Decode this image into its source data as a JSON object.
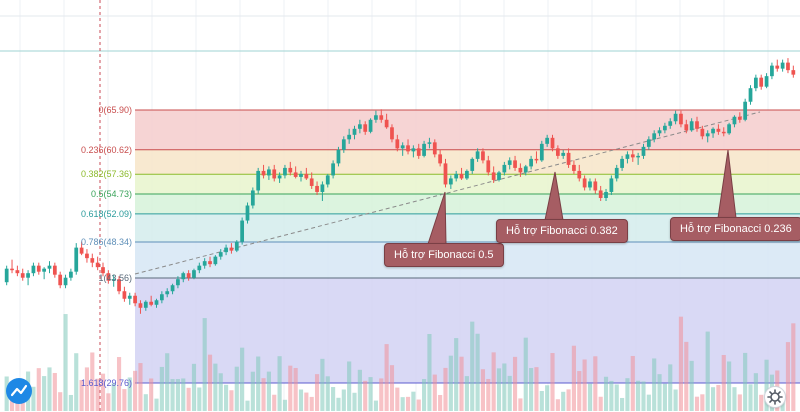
{
  "chart_data": {
    "type": "candlestick",
    "y_unit": "price",
    "fibonacci_levels": [
      {
        "ratio": "0",
        "price": 65.9,
        "label": "0(65.90)",
        "color": "#c84d4d",
        "fill": "#f4cccc"
      },
      {
        "ratio": "0.236",
        "price": 60.62,
        "label": "0.236(60.62)",
        "color": "#c84d4d",
        "fill": "#f7e5c8"
      },
      {
        "ratio": "0.382",
        "price": 57.36,
        "label": "0.382(57.36)",
        "color": "#8cbb2c",
        "fill": "#e7f5cc"
      },
      {
        "ratio": "0.5",
        "price": 54.73,
        "label": "0.5(54.73)",
        "color": "#3aa35a",
        "fill": "#d6f2d9"
      },
      {
        "ratio": "0.618",
        "price": 52.09,
        "label": "0.618(52.09)",
        "color": "#2c9c9c",
        "fill": "#d3ecec"
      },
      {
        "ratio": "0.786",
        "price": 48.34,
        "label": "0.786(48.34)",
        "color": "#5e8fb8",
        "fill": "#d6e6f5"
      },
      {
        "ratio": "1",
        "price": 43.56,
        "label": "1(43.56)",
        "color": "#5a6a7a",
        "fill": "#e7e7e7"
      },
      {
        "ratio": "1.618",
        "price": 29.76,
        "label": "1.618(29.76)",
        "color": "#5c5ccf",
        "fill": "#d5d5f4"
      }
    ],
    "annotations": [
      {
        "text": "Hỗ trợ Fibonacci 0.5"
      },
      {
        "text": "Hỗ trợ Fibonacci 0.382"
      },
      {
        "text": "Hỗ trợ Fibonacci 0.236"
      }
    ],
    "candles": [
      [
        43.0,
        45.2,
        42.6,
        44.8
      ],
      [
        44.8,
        46.0,
        44.2,
        44.6
      ],
      [
        44.6,
        45.2,
        43.8,
        44.2
      ],
      [
        44.2,
        44.8,
        43.2,
        43.6
      ],
      [
        43.6,
        44.6,
        42.6,
        44.2
      ],
      [
        44.2,
        45.6,
        43.8,
        45.2
      ],
      [
        45.2,
        45.6,
        44.0,
        44.4
      ],
      [
        44.4,
        45.0,
        43.4,
        44.8
      ],
      [
        44.8,
        45.8,
        44.2,
        45.2
      ],
      [
        45.2,
        45.6,
        43.6,
        44.0
      ],
      [
        44.0,
        44.4,
        42.2,
        42.6
      ],
      [
        42.6,
        44.0,
        42.2,
        43.6
      ],
      [
        43.6,
        44.8,
        43.2,
        44.4
      ],
      [
        44.4,
        48.2,
        44.0,
        47.6
      ],
      [
        47.6,
        48.4,
        46.6,
        46.8
      ],
      [
        46.8,
        47.4,
        45.6,
        46.2
      ],
      [
        46.2,
        46.8,
        45.0,
        45.6
      ],
      [
        45.6,
        46.4,
        44.6,
        45.0
      ],
      [
        45.0,
        45.6,
        43.8,
        44.2
      ],
      [
        44.2,
        44.6,
        42.8,
        43.2
      ],
      [
        43.2,
        44.0,
        42.4,
        43.4
      ],
      [
        43.4,
        43.8,
        41.4,
        41.8
      ],
      [
        41.8,
        42.4,
        40.4,
        40.8
      ],
      [
        40.8,
        41.6,
        40.0,
        41.2
      ],
      [
        41.2,
        41.6,
        39.8,
        40.2
      ],
      [
        40.2,
        40.6,
        38.8,
        39.6
      ],
      [
        39.6,
        40.6,
        39.2,
        40.4
      ],
      [
        40.4,
        41.2,
        39.8,
        40.0
      ],
      [
        40.0,
        40.8,
        39.6,
        40.6
      ],
      [
        40.6,
        41.8,
        40.2,
        41.4
      ],
      [
        41.4,
        42.2,
        41.0,
        41.8
      ],
      [
        41.8,
        42.8,
        41.4,
        42.6
      ],
      [
        42.6,
        43.8,
        42.2,
        43.4
      ],
      [
        43.4,
        44.4,
        43.0,
        44.2
      ],
      [
        44.2,
        44.6,
        43.2,
        43.6
      ],
      [
        43.6,
        44.8,
        43.4,
        44.6
      ],
      [
        44.6,
        45.6,
        44.2,
        45.2
      ],
      [
        45.2,
        46.2,
        44.8,
        45.8
      ],
      [
        45.8,
        46.4,
        45.0,
        45.4
      ],
      [
        45.4,
        46.6,
        45.2,
        46.4
      ],
      [
        46.4,
        47.4,
        46.0,
        47.0
      ],
      [
        47.0,
        48.0,
        46.6,
        47.6
      ],
      [
        47.6,
        48.2,
        46.8,
        47.2
      ],
      [
        47.2,
        48.6,
        47.0,
        48.4
      ],
      [
        48.4,
        51.6,
        48.0,
        51.2
      ],
      [
        51.2,
        53.6,
        50.8,
        53.2
      ],
      [
        53.2,
        55.6,
        52.8,
        55.2
      ],
      [
        55.2,
        58.2,
        54.8,
        57.8
      ],
      [
        57.8,
        58.6,
        56.8,
        57.2
      ],
      [
        57.2,
        58.4,
        56.6,
        58.0
      ],
      [
        58.0,
        58.6,
        56.4,
        56.8
      ],
      [
        56.8,
        57.6,
        56.2,
        57.2
      ],
      [
        57.2,
        58.6,
        56.8,
        58.2
      ],
      [
        58.2,
        59.0,
        57.2,
        57.6
      ],
      [
        57.6,
        58.4,
        56.8,
        57.0
      ],
      [
        57.0,
        57.8,
        56.4,
        57.4
      ],
      [
        57.4,
        58.2,
        56.6,
        56.8
      ],
      [
        56.8,
        57.6,
        55.4,
        55.8
      ],
      [
        55.8,
        56.4,
        54.6,
        55.0
      ],
      [
        55.0,
        56.4,
        53.8,
        56.0
      ],
      [
        56.0,
        57.4,
        55.6,
        57.2
      ],
      [
        57.2,
        59.2,
        56.8,
        58.8
      ],
      [
        58.8,
        61.0,
        58.4,
        60.6
      ],
      [
        60.6,
        62.4,
        60.2,
        62.0
      ],
      [
        62.0,
        63.4,
        61.4,
        62.6
      ],
      [
        62.6,
        63.8,
        62.0,
        63.4
      ],
      [
        63.4,
        64.6,
        62.8,
        64.0
      ],
      [
        64.0,
        64.4,
        62.6,
        63.0
      ],
      [
        63.0,
        64.8,
        62.8,
        64.6
      ],
      [
        64.6,
        65.8,
        64.2,
        65.2
      ],
      [
        65.2,
        66.0,
        64.2,
        64.6
      ],
      [
        64.6,
        65.4,
        63.4,
        63.6
      ],
      [
        63.6,
        64.0,
        61.6,
        62.0
      ],
      [
        62.0,
        62.6,
        60.4,
        60.8
      ],
      [
        60.8,
        61.6,
        59.8,
        61.2
      ],
      [
        61.2,
        62.0,
        60.0,
        60.4
      ],
      [
        60.4,
        61.2,
        59.6,
        60.8
      ],
      [
        60.8,
        61.4,
        59.4,
        59.8
      ],
      [
        59.8,
        61.8,
        59.6,
        61.4
      ],
      [
        61.4,
        62.2,
        60.8,
        61.6
      ],
      [
        61.6,
        62.0,
        59.6,
        60.0
      ],
      [
        60.0,
        60.6,
        58.4,
        58.8
      ],
      [
        58.8,
        59.4,
        55.6,
        56.0
      ],
      [
        56.0,
        57.2,
        55.4,
        56.8
      ],
      [
        56.8,
        57.8,
        56.4,
        57.4
      ],
      [
        57.4,
        58.2,
        56.6,
        56.8
      ],
      [
        56.8,
        58.0,
        56.6,
        57.8
      ],
      [
        57.8,
        59.6,
        57.4,
        59.4
      ],
      [
        59.4,
        60.8,
        59.0,
        60.4
      ],
      [
        60.4,
        60.8,
        58.8,
        59.2
      ],
      [
        59.2,
        59.8,
        57.2,
        57.6
      ],
      [
        57.6,
        58.4,
        56.2,
        56.6
      ],
      [
        56.6,
        57.8,
        56.4,
        57.6
      ],
      [
        57.6,
        59.0,
        57.2,
        58.6
      ],
      [
        58.6,
        59.6,
        58.0,
        59.2
      ],
      [
        59.2,
        59.8,
        57.8,
        58.2
      ],
      [
        58.2,
        58.8,
        57.0,
        57.6
      ],
      [
        57.6,
        58.6,
        57.2,
        58.4
      ],
      [
        58.4,
        59.8,
        58.0,
        59.4
      ],
      [
        59.4,
        60.4,
        58.8,
        59.2
      ],
      [
        59.2,
        61.8,
        59.0,
        61.4
      ],
      [
        61.4,
        62.6,
        61.0,
        62.2
      ],
      [
        62.2,
        62.6,
        60.4,
        60.8
      ],
      [
        60.8,
        61.2,
        59.4,
        59.8
      ],
      [
        59.8,
        60.6,
        59.4,
        60.2
      ],
      [
        60.2,
        60.8,
        58.2,
        58.6
      ],
      [
        58.6,
        59.2,
        57.4,
        57.8
      ],
      [
        57.8,
        58.6,
        56.4,
        56.8
      ],
      [
        56.8,
        57.2,
        55.2,
        55.6
      ],
      [
        55.6,
        56.8,
        55.2,
        56.4
      ],
      [
        56.4,
        56.8,
        54.8,
        55.2
      ],
      [
        55.2,
        55.8,
        53.8,
        54.2
      ],
      [
        54.2,
        55.4,
        53.8,
        55.0
      ],
      [
        55.0,
        57.2,
        54.6,
        56.8
      ],
      [
        56.8,
        58.6,
        56.4,
        58.2
      ],
      [
        58.2,
        59.8,
        57.8,
        59.4
      ],
      [
        59.4,
        60.4,
        58.8,
        60.0
      ],
      [
        60.0,
        60.6,
        59.0,
        59.6
      ],
      [
        59.6,
        60.2,
        58.6,
        59.8
      ],
      [
        59.8,
        61.4,
        59.4,
        61.0
      ],
      [
        61.0,
        62.4,
        60.6,
        62.0
      ],
      [
        62.0,
        63.2,
        61.6,
        62.8
      ],
      [
        62.8,
        63.6,
        62.4,
        63.2
      ],
      [
        63.2,
        64.2,
        62.8,
        63.8
      ],
      [
        63.8,
        64.8,
        63.4,
        64.4
      ],
      [
        64.4,
        65.8,
        64.0,
        65.4
      ],
      [
        65.4,
        65.8,
        63.6,
        64.0
      ],
      [
        64.0,
        64.6,
        62.8,
        63.2
      ],
      [
        63.2,
        64.8,
        63.0,
        64.4
      ],
      [
        64.4,
        65.0,
        63.0,
        63.4
      ],
      [
        63.4,
        63.8,
        62.0,
        62.4
      ],
      [
        62.4,
        63.2,
        61.6,
        62.8
      ],
      [
        62.8,
        63.6,
        62.2,
        63.4
      ],
      [
        63.4,
        64.0,
        62.6,
        63.0
      ],
      [
        63.0,
        63.6,
        62.4,
        62.8
      ],
      [
        62.8,
        64.2,
        62.6,
        64.0
      ],
      [
        64.0,
        65.2,
        63.6,
        65.0
      ],
      [
        65.0,
        65.6,
        64.2,
        64.6
      ],
      [
        64.6,
        67.4,
        64.4,
        67.0
      ],
      [
        67.0,
        69.2,
        66.6,
        68.8
      ],
      [
        68.8,
        70.6,
        68.4,
        70.2
      ],
      [
        70.2,
        70.6,
        68.6,
        69.0
      ],
      [
        69.0,
        70.8,
        68.8,
        70.4
      ],
      [
        70.4,
        72.2,
        70.0,
        71.8
      ],
      [
        71.8,
        72.6,
        71.0,
        71.4
      ],
      [
        71.4,
        72.6,
        71.0,
        72.2
      ],
      [
        72.2,
        72.8,
        70.8,
        71.2
      ],
      [
        71.2,
        71.8,
        70.2,
        70.6
      ]
    ]
  }
}
